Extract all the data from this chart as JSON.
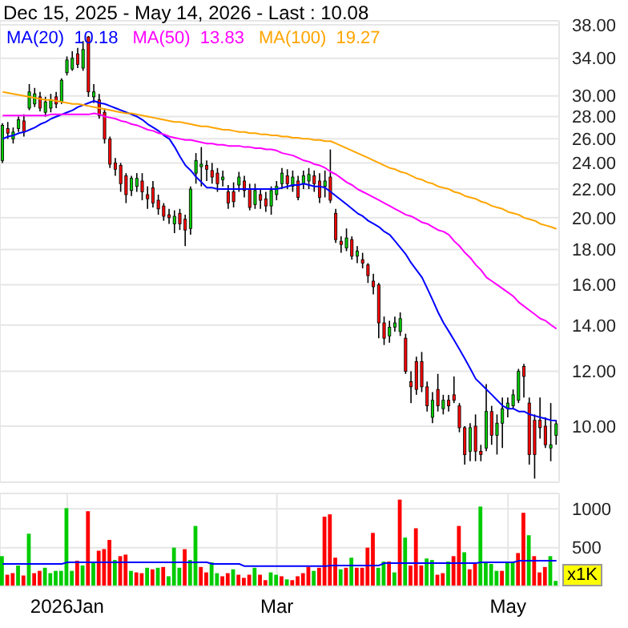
{
  "chart_data": [
    {
      "type": "candlestick",
      "title": "Dec 15, 2025 - May 14, 2026 - Last : 10.08",
      "legend": "top left",
      "grid": true,
      "log": "y",
      "tick_labels": "y",
      "annotations": [
        "10.18",
        "13.83",
        "19.27"
      ],
      "categories": [
        null,
        null,
        null,
        null,
        null,
        null,
        null,
        null,
        null,
        null,
        null,
        null,
        null,
        null,
        null,
        null,
        null,
        null,
        null,
        null,
        null,
        null,
        null,
        null,
        null,
        null,
        null,
        null,
        null,
        null,
        null,
        null,
        null,
        null,
        null,
        null,
        null,
        null,
        null,
        null,
        null,
        null,
        null,
        null,
        null,
        null,
        null,
        null,
        null,
        null,
        null,
        null,
        null,
        null,
        null,
        null,
        null,
        null,
        null,
        null,
        null,
        null,
        null,
        null,
        null,
        null,
        null,
        null,
        null,
        null,
        null,
        null,
        null,
        null,
        null,
        null,
        null,
        null,
        null,
        null,
        null,
        null,
        null,
        null,
        null,
        null,
        null,
        null,
        null,
        null,
        null,
        null,
        null,
        null,
        null,
        null,
        null,
        null,
        null,
        null,
        null,
        null,
        null,
        null
      ],
      "ylim": [
        8.3,
        38.5
      ],
      "yticks": [
        {
          "value": 10,
          "label": "10.00"
        },
        {
          "value": 12,
          "label": "12.00"
        },
        {
          "value": 14,
          "label": "14.00"
        },
        {
          "value": 16,
          "label": "16.00"
        },
        {
          "value": 18,
          "label": "18.00"
        },
        {
          "value": 20,
          "label": "20.00"
        },
        {
          "value": 22,
          "label": "22.00"
        },
        {
          "value": 24,
          "label": "24.00"
        },
        {
          "value": 26,
          "label": "26.00"
        },
        {
          "value": 28,
          "label": "28.00"
        },
        {
          "value": 30,
          "label": "30.00"
        },
        {
          "value": 34,
          "label": "34.00"
        },
        {
          "value": 38,
          "label": "38.00"
        }
      ],
      "ohlc": [
        [
          24.2,
          27.4,
          24.0,
          27.2
        ],
        [
          26.9,
          27.5,
          26.0,
          26.5
        ],
        [
          26.0,
          27.0,
          25.6,
          26.6
        ],
        [
          26.9,
          28.0,
          26.6,
          27.7
        ],
        [
          27.6,
          28.2,
          26.2,
          26.6
        ],
        [
          28.8,
          31.2,
          28.6,
          30.4
        ],
        [
          29.2,
          30.8,
          28.9,
          30.2
        ],
        [
          29.9,
          30.4,
          28.5,
          28.8
        ],
        [
          28.4,
          29.9,
          28.0,
          29.4
        ],
        [
          28.8,
          30.2,
          28.4,
          29.6
        ],
        [
          29.9,
          30.4,
          28.8,
          29.2
        ],
        [
          29.4,
          31.8,
          29.2,
          31.6
        ],
        [
          32.4,
          34.2,
          32.1,
          33.8
        ],
        [
          32.8,
          34.8,
          32.6,
          34.0
        ],
        [
          34.5,
          35.2,
          32.9,
          33.3
        ],
        [
          32.9,
          36.0,
          32.6,
          35.0
        ],
        [
          36.5,
          36.6,
          29.9,
          30.4
        ],
        [
          29.9,
          31.2,
          29.3,
          30.4
        ],
        [
          29.6,
          30.2,
          27.8,
          28.1
        ],
        [
          28.4,
          28.8,
          25.6,
          26.0
        ],
        [
          26.0,
          26.2,
          23.6,
          23.9
        ],
        [
          24.0,
          24.4,
          23.0,
          23.5
        ],
        [
          23.8,
          24.0,
          21.8,
          22.4
        ],
        [
          23.0,
          23.2,
          21.0,
          21.6
        ],
        [
          21.9,
          23.0,
          21.5,
          22.8
        ],
        [
          22.2,
          23.2,
          21.8,
          22.8
        ],
        [
          22.6,
          23.2,
          21.2,
          21.8
        ],
        [
          21.6,
          22.2,
          20.6,
          21.3
        ],
        [
          22.1,
          22.6,
          20.7,
          21.0
        ],
        [
          21.2,
          21.6,
          20.2,
          20.6
        ],
        [
          20.8,
          21.0,
          19.8,
          20.1
        ],
        [
          20.2,
          20.6,
          19.6,
          20.0
        ],
        [
          19.6,
          20.5,
          19.0,
          20.1
        ],
        [
          20.3,
          20.6,
          19.2,
          19.6
        ],
        [
          19.9,
          20.2,
          18.2,
          19.2
        ],
        [
          19.3,
          22.2,
          18.9,
          22.0
        ],
        [
          23.2,
          24.8,
          22.4,
          24.2
        ],
        [
          23.7,
          25.3,
          22.2,
          23.9
        ],
        [
          23.8,
          24.2,
          22.6,
          23.5
        ],
        [
          23.4,
          24.0,
          22.4,
          22.9
        ],
        [
          23.2,
          23.6,
          21.8,
          22.4
        ],
        [
          22.7,
          23.4,
          22.2,
          22.9
        ],
        [
          21.8,
          22.3,
          20.6,
          21.0
        ],
        [
          21.8,
          22.5,
          20.7,
          21.1
        ],
        [
          22.3,
          23.3,
          21.8,
          22.9
        ],
        [
          22.6,
          23.0,
          21.4,
          21.9
        ],
        [
          22.0,
          22.4,
          20.5,
          20.7
        ],
        [
          20.9,
          22.4,
          20.6,
          21.9
        ],
        [
          21.6,
          22.0,
          20.6,
          21.2
        ],
        [
          21.3,
          21.8,
          20.4,
          20.8
        ],
        [
          20.8,
          22.2,
          20.2,
          21.9
        ],
        [
          21.6,
          22.6,
          21.2,
          22.2
        ],
        [
          22.4,
          23.6,
          22.0,
          23.2
        ],
        [
          23.0,
          23.5,
          22.0,
          22.4
        ],
        [
          22.2,
          23.4,
          21.8,
          22.9
        ],
        [
          22.6,
          23.0,
          21.2,
          21.4
        ],
        [
          22.4,
          23.4,
          22.0,
          23.0
        ],
        [
          22.6,
          23.6,
          22.0,
          23.1
        ],
        [
          23.0,
          23.4,
          21.8,
          22.4
        ],
        [
          22.6,
          23.2,
          21.0,
          21.4
        ],
        [
          22.2,
          23.4,
          21.4,
          22.6
        ],
        [
          22.9,
          25.1,
          21.0,
          21.2
        ],
        [
          20.3,
          20.6,
          18.4,
          18.6
        ],
        [
          18.5,
          18.8,
          17.8,
          18.3
        ],
        [
          18.1,
          19.3,
          17.9,
          18.7
        ],
        [
          18.6,
          18.8,
          17.4,
          17.6
        ],
        [
          17.6,
          18.2,
          17.2,
          17.9
        ],
        [
          17.4,
          17.8,
          16.9,
          17.2
        ],
        [
          17.1,
          17.2,
          16.1,
          16.5
        ],
        [
          16.2,
          16.6,
          15.5,
          15.9
        ],
        [
          16.0,
          16.1,
          13.4,
          14.1
        ],
        [
          14.1,
          14.4,
          13.1,
          13.4
        ],
        [
          13.5,
          14.2,
          13.2,
          13.9
        ],
        [
          13.9,
          14.4,
          13.7,
          14.1
        ],
        [
          13.7,
          14.6,
          13.5,
          14.3
        ],
        [
          13.4,
          13.6,
          11.9,
          12.0
        ],
        [
          11.6,
          12.0,
          10.8,
          11.4
        ],
        [
          12.4,
          12.6,
          11.1,
          11.3
        ],
        [
          12.4,
          12.8,
          11.2,
          11.4
        ],
        [
          11.4,
          11.6,
          10.5,
          10.7
        ],
        [
          10.3,
          11.2,
          10.1,
          10.9
        ],
        [
          11.3,
          11.9,
          10.5,
          10.7
        ],
        [
          10.6,
          11.1,
          10.4,
          10.9
        ],
        [
          10.9,
          11.1,
          10.5,
          10.7
        ],
        [
          11.1,
          11.8,
          10.8,
          10.9
        ],
        [
          10.7,
          10.8,
          9.8,
          9.95
        ],
        [
          9.95,
          10.0,
          8.8,
          9.1
        ],
        [
          9.2,
          10.1,
          8.9,
          9.95
        ],
        [
          10.0,
          10.4,
          8.9,
          9.2
        ],
        [
          9.2,
          9.4,
          8.9,
          9.1
        ],
        [
          9.3,
          11.5,
          9.2,
          10.5
        ],
        [
          10.5,
          10.7,
          9.4,
          9.7
        ],
        [
          9.7,
          10.4,
          9.1,
          10.1
        ],
        [
          10.1,
          11.0,
          9.3,
          10.6
        ],
        [
          10.6,
          11.0,
          10.3,
          10.8
        ],
        [
          10.7,
          11.3,
          10.6,
          11.1
        ],
        [
          10.9,
          12.1,
          10.8,
          12.0
        ],
        [
          12.2,
          12.3,
          11.0,
          11.8
        ],
        [
          10.8,
          11.0,
          8.8,
          9.1
        ],
        [
          10.2,
          10.4,
          8.4,
          9.1
        ],
        [
          10.2,
          11.0,
          9.6,
          9.95
        ],
        [
          10.0,
          10.3,
          9.3,
          9.4
        ],
        [
          9.3,
          10.8,
          8.9,
          9.4
        ],
        [
          9.7,
          10.2,
          9.4,
          10.08
        ]
      ],
      "colors": [
        "#00cc00",
        "#ff0000",
        "#00cc00",
        "#00cc00",
        "#ff0000",
        "#00cc00",
        "#00cc00",
        "#ff0000",
        "#00cc00",
        "#00cc00",
        "#ff0000",
        "#00cc00",
        "#00cc00",
        "#00cc00",
        "#ff0000",
        "#00cc00",
        "#ff0000",
        "#00cc00",
        "#ff0000",
        "#ff0000",
        "#ff0000",
        "#ff0000",
        "#ff0000",
        "#ff0000",
        "#00cc00",
        "#00cc00",
        "#ff0000",
        "#ff0000",
        "#ff0000",
        "#ff0000",
        "#ff0000",
        "#ff0000",
        "#00cc00",
        "#ff0000",
        "#ff0000",
        "#00cc00",
        "#00cc00",
        "#00cc00",
        "#ff0000",
        "#ff0000",
        "#ff0000",
        "#00cc00",
        "#ff0000",
        "#ff0000",
        "#00cc00",
        "#ff0000",
        "#ff0000",
        "#00cc00",
        "#ff0000",
        "#ff0000",
        "#00cc00",
        "#00cc00",
        "#00cc00",
        "#ff0000",
        "#00cc00",
        "#ff0000",
        "#00cc00",
        "#00cc00",
        "#ff0000",
        "#ff0000",
        "#00cc00",
        "#ff0000",
        "#ff0000",
        "#ff0000",
        "#00cc00",
        "#ff0000",
        "#00cc00",
        "#ff0000",
        "#ff0000",
        "#ff0000",
        "#ff0000",
        "#ff0000",
        "#00cc00",
        "#00cc00",
        "#00cc00",
        "#ff0000",
        "#ff0000",
        "#ff0000",
        "#ff0000",
        "#ff0000",
        "#00cc00",
        "#ff0000",
        "#00cc00",
        "#ff0000",
        "#ff0000",
        "#ff0000",
        "#ff0000",
        "#00cc00",
        "#ff0000",
        "#ff0000",
        "#00cc00",
        "#ff0000",
        "#00cc00",
        "#00cc00",
        "#00cc00",
        "#00cc00",
        "#00cc00",
        "#ff0000",
        "#ff0000",
        "#ff0000",
        "#ff0000",
        "#ff0000",
        "#00cc00",
        "#00cc00"
      ],
      "series": [
        {
          "type": "line",
          "name": "MA(20)",
          "color": "#0000ff",
          "values": [
            26.0,
            26.2,
            26.3,
            26.5,
            26.6,
            26.8,
            27.0,
            27.3,
            27.5,
            27.8,
            28.0,
            28.2,
            28.4,
            28.6,
            28.9,
            29.1,
            29.3,
            29.5,
            29.3,
            29.2,
            29.0,
            28.8,
            28.6,
            28.4,
            28.2,
            28.0,
            27.7,
            27.3,
            27.0,
            26.7,
            26.3,
            26.0,
            25.3,
            24.5,
            23.8,
            23.4,
            22.9,
            22.5,
            22.1,
            22.1,
            22.0,
            22.0,
            22.0,
            22.0,
            22.0,
            22.0,
            22.0,
            22.0,
            22.0,
            22.0,
            22.0,
            22.0,
            22.1,
            22.2,
            22.3,
            22.3,
            22.4,
            22.3,
            22.2,
            22.2,
            22.1,
            21.8,
            21.5,
            21.2,
            20.9,
            20.6,
            20.3,
            20.1,
            19.8,
            19.6,
            19.4,
            19.1,
            18.9,
            18.5,
            18.1,
            17.7,
            17.2,
            16.8,
            16.4,
            15.8,
            15.2,
            14.6,
            14.1,
            13.7,
            13.3,
            12.9,
            12.5,
            12.1,
            11.7,
            11.5,
            11.3,
            11.1,
            10.9,
            10.7,
            10.6,
            10.6,
            10.5,
            10.5,
            10.4,
            10.35,
            10.3,
            10.25,
            10.2,
            10.18
          ]
        },
        {
          "type": "line",
          "name": "MA(50)",
          "color": "#ff00ff",
          "values": [
            28.1,
            28.1,
            28.1,
            28.1,
            28.1,
            28.1,
            28.1,
            28.1,
            28.1,
            28.2,
            28.2,
            28.2,
            28.2,
            28.2,
            28.2,
            28.2,
            28.2,
            28.3,
            28.2,
            28.0,
            27.9,
            27.8,
            27.6,
            27.5,
            27.3,
            27.2,
            27.0,
            26.8,
            26.7,
            26.5,
            26.4,
            26.2,
            26.1,
            26.0,
            25.9,
            25.9,
            25.8,
            25.7,
            25.6,
            25.6,
            25.5,
            25.5,
            25.4,
            25.4,
            25.4,
            25.3,
            25.3,
            25.2,
            25.2,
            25.1,
            25.1,
            25.0,
            24.8,
            24.7,
            24.6,
            24.4,
            24.2,
            24.1,
            23.9,
            23.8,
            23.6,
            23.3,
            23.1,
            22.8,
            22.5,
            22.3,
            22.0,
            21.8,
            21.6,
            21.4,
            21.2,
            21.0,
            20.8,
            20.6,
            20.4,
            20.2,
            20.1,
            19.9,
            19.7,
            19.6,
            19.4,
            19.2,
            19.1,
            18.9,
            18.5,
            18.2,
            17.8,
            17.5,
            17.1,
            16.8,
            16.4,
            16.2,
            16.0,
            15.8,
            15.6,
            15.4,
            15.1,
            14.9,
            14.7,
            14.5,
            14.3,
            14.2,
            14.0,
            13.83
          ]
        },
        {
          "type": "line",
          "name": "MA(100)",
          "color": "#ffa500",
          "values": [
            30.4,
            30.3,
            30.2,
            30.1,
            30.0,
            29.9,
            29.8,
            29.7,
            29.6,
            29.6,
            29.5,
            29.4,
            29.3,
            29.2,
            29.2,
            29.1,
            29.0,
            28.9,
            28.8,
            28.7,
            28.6,
            28.5,
            28.4,
            28.3,
            28.3,
            28.2,
            28.1,
            28.0,
            27.9,
            27.8,
            27.7,
            27.6,
            27.5,
            27.5,
            27.4,
            27.3,
            27.2,
            27.1,
            27.1,
            27.0,
            26.9,
            26.8,
            26.8,
            26.7,
            26.6,
            26.6,
            26.5,
            26.5,
            26.4,
            26.4,
            26.3,
            26.3,
            26.2,
            26.2,
            26.1,
            26.1,
            26.0,
            26.0,
            25.9,
            25.9,
            25.8,
            25.8,
            25.6,
            25.4,
            25.2,
            25.0,
            24.8,
            24.6,
            24.4,
            24.2,
            24.0,
            23.8,
            23.6,
            23.5,
            23.3,
            23.2,
            23.0,
            22.8,
            22.7,
            22.5,
            22.4,
            22.2,
            22.1,
            22.0,
            21.8,
            21.7,
            21.5,
            21.4,
            21.3,
            21.1,
            21.0,
            20.8,
            20.7,
            20.6,
            20.4,
            20.3,
            20.2,
            20.0,
            19.9,
            19.8,
            19.6,
            19.5,
            19.4,
            19.27
          ]
        }
      ]
    },
    {
      "type": "bar",
      "grid": true,
      "annotations": [
        "x1K"
      ],
      "categories": [
        null,
        null,
        null,
        null,
        null,
        null,
        null,
        null,
        null,
        null,
        null,
        null,
        "2026Jan",
        null,
        null,
        null,
        null,
        null,
        null,
        null,
        null,
        null,
        null,
        null,
        null,
        null,
        null,
        null,
        null,
        null,
        null,
        null,
        null,
        null,
        null,
        null,
        null,
        null,
        null,
        null,
        null,
        null,
        null,
        null,
        null,
        null,
        null,
        null,
        null,
        null,
        null,
        "Mar",
        null,
        null,
        null,
        null,
        null,
        null,
        null,
        null,
        null,
        null,
        null,
        null,
        null,
        null,
        null,
        null,
        null,
        null,
        null,
        null,
        null,
        null,
        null,
        null,
        null,
        null,
        null,
        null,
        null,
        null,
        null,
        null,
        null,
        null,
        null,
        null,
        null,
        null,
        null,
        null,
        null,
        null,
        "May",
        null,
        null,
        null,
        null,
        null,
        null,
        null,
        null,
        null
      ],
      "ylim": [
        0,
        1200
      ],
      "yticks": [
        500,
        1000
      ],
      "series": [
        {
          "type": "bar",
          "values": [
            390,
            150,
            170,
            270,
            140,
            680,
            170,
            200,
            240,
            170,
            200,
            200,
            1010,
            200,
            330,
            270,
            970,
            310,
            460,
            480,
            600,
            340,
            390,
            410,
            200,
            180,
            170,
            240,
            220,
            240,
            250,
            130,
            500,
            240,
            480,
            340,
            780,
            250,
            180,
            310,
            170,
            130,
            170,
            220,
            150,
            110,
            150,
            240,
            150,
            80,
            180,
            150,
            130,
            90,
            80,
            130,
            170,
            250,
            200,
            240,
            900,
            930,
            370,
            220,
            240,
            370,
            240,
            240,
            500,
            690,
            240,
            320,
            320,
            180,
            1120,
            630,
            270,
            750,
            270,
            360,
            340,
            150,
            170,
            320,
            390,
            780,
            440,
            220,
            290,
            1030,
            310,
            290,
            200,
            200,
            310,
            310,
            430,
            950,
            660,
            390,
            180,
            250,
            390,
            70
          ],
          "colors": [
            "#00cc00",
            "#ff0000",
            "#ff0000",
            "#00cc00",
            "#ff0000",
            "#00cc00",
            "#ff0000",
            "#ff0000",
            "#00cc00",
            "#00cc00",
            "#00cc00",
            "#00cc00",
            "#00cc00",
            "#00cc00",
            "#ff0000",
            "#00cc00",
            "#ff0000",
            "#00cc00",
            "#ff0000",
            "#ff0000",
            "#ff0000",
            "#00cc00",
            "#ff0000",
            "#ff0000",
            "#00cc00",
            "#ff0000",
            "#ff0000",
            "#00cc00",
            "#ff0000",
            "#00cc00",
            "#ff0000",
            "#00cc00",
            "#00cc00",
            "#00cc00",
            "#ff0000",
            "#00cc00",
            "#00cc00",
            "#ff0000",
            "#ff0000",
            "#00cc00",
            "#00cc00",
            "#ff0000",
            "#ff0000",
            "#00cc00",
            "#ff0000",
            "#ff0000",
            "#ff0000",
            "#00cc00",
            "#ff0000",
            "#ff0000",
            "#00cc00",
            "#00cc00",
            "#ff0000",
            "#00cc00",
            "#ff0000",
            "#ff0000",
            "#ff0000",
            "#ff0000",
            "#00cc00",
            "#ff0000",
            "#ff0000",
            "#ff0000",
            "#ff0000",
            "#00cc00",
            "#ff0000",
            "#00cc00",
            "#ff0000",
            "#ff0000",
            "#ff0000",
            "#ff0000",
            "#00cc00",
            "#00cc00",
            "#ff0000",
            "#00cc00",
            "#ff0000",
            "#00cc00",
            "#ff0000",
            "#ff0000",
            "#ff0000",
            "#00cc00",
            "#00cc00",
            "#ff0000",
            "#ff0000",
            "#00cc00",
            "#ff0000",
            "#ff0000",
            "#00cc00",
            "#ff0000",
            "#ff0000",
            "#00cc00",
            "#00cc00",
            "#00cc00",
            "#00cc00",
            "#ff0000",
            "#00cc00",
            "#00cc00",
            "#ff0000",
            "#ff0000",
            "#00cc00",
            "#ff0000",
            "#ff0000",
            "#ff0000",
            "#00cc00",
            "#00cc00"
          ]
        },
        {
          "type": "line",
          "color": "#0000ff",
          "values": [
            290,
            290,
            290,
            290,
            290,
            290,
            290,
            290,
            290,
            290,
            290,
            290,
            310,
            310,
            310,
            310,
            310,
            310,
            310,
            310,
            310,
            310,
            310,
            310,
            310,
            310,
            310,
            310,
            310,
            310,
            310,
            310,
            310,
            310,
            310,
            310,
            310,
            310,
            310,
            290,
            290,
            290,
            290,
            290,
            290,
            260,
            260,
            260,
            260,
            260,
            260,
            260,
            260,
            260,
            260,
            260,
            260,
            260,
            260,
            260,
            260,
            270,
            270,
            270,
            270,
            270,
            270,
            270,
            270,
            270,
            270,
            300,
            300,
            300,
            300,
            300,
            300,
            300,
            300,
            300,
            300,
            300,
            300,
            300,
            300,
            300,
            300,
            300,
            300,
            310,
            310,
            310,
            310,
            310,
            310,
            310,
            330,
            330,
            330,
            330,
            330,
            330,
            330,
            330
          ]
        }
      ]
    }
  ]
}
